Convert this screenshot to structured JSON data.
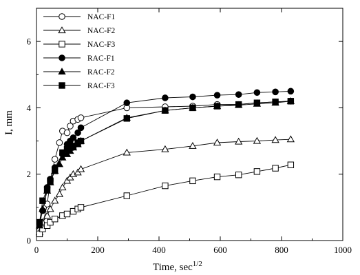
{
  "chart_data": {
    "type": "line",
    "title": "",
    "xlabel": "Time, sec",
    "xlabel_superscript": "1/2",
    "ylabel": "I, mm",
    "xlim": [
      0,
      1000
    ],
    "ylim": [
      0,
      7
    ],
    "x_ticks": [
      "0",
      "200",
      "400",
      "600",
      "800",
      "1000"
    ],
    "y_ticks": [
      "0",
      "2",
      "4",
      "6"
    ],
    "grid": false,
    "legend_position": "top-left",
    "series": [
      {
        "name": "NAC-F1",
        "marker": "circle-open",
        "x": [
          10,
          20,
          35,
          45,
          60,
          75,
          85,
          100,
          110,
          120,
          135,
          145,
          295,
          420,
          510,
          590,
          660,
          720,
          780,
          830
        ],
        "y": [
          0.3,
          0.45,
          1.1,
          1.8,
          2.45,
          2.95,
          3.3,
          3.25,
          3.45,
          3.6,
          3.65,
          3.7,
          4.0,
          4.03,
          4.05,
          4.1,
          4.1,
          4.15,
          4.18,
          4.2
        ]
      },
      {
        "name": "NAC-F2",
        "marker": "triangle-open",
        "x": [
          10,
          20,
          35,
          45,
          60,
          75,
          85,
          100,
          110,
          120,
          135,
          145,
          295,
          420,
          510,
          590,
          660,
          720,
          780,
          830
        ],
        "y": [
          0.25,
          0.55,
          0.75,
          0.95,
          1.2,
          1.4,
          1.6,
          1.8,
          1.9,
          2.0,
          2.05,
          2.15,
          2.65,
          2.75,
          2.85,
          2.95,
          2.98,
          3.0,
          3.03,
          3.05
        ]
      },
      {
        "name": "NAC-F3",
        "marker": "square-open",
        "x": [
          10,
          20,
          35,
          45,
          60,
          85,
          100,
          120,
          135,
          145,
          295,
          420,
          510,
          590,
          660,
          720,
          780,
          830
        ],
        "y": [
          0.2,
          0.35,
          0.45,
          0.55,
          0.65,
          0.75,
          0.8,
          0.88,
          0.95,
          1.0,
          1.35,
          1.65,
          1.8,
          1.92,
          1.98,
          2.08,
          2.18,
          2.28
        ]
      },
      {
        "name": "RAC-F1",
        "marker": "circle-filled",
        "x": [
          10,
          20,
          35,
          45,
          60,
          85,
          100,
          110,
          120,
          135,
          145,
          295,
          420,
          510,
          590,
          660,
          720,
          780,
          830
        ],
        "y": [
          0.5,
          0.9,
          1.6,
          1.85,
          2.2,
          2.6,
          2.9,
          3.0,
          3.1,
          3.25,
          3.4,
          4.15,
          4.3,
          4.33,
          4.38,
          4.4,
          4.46,
          4.48,
          4.5
        ]
      },
      {
        "name": "RAC-F2",
        "marker": "triangle-filled",
        "x": [
          10,
          20,
          35,
          45,
          60,
          75,
          85,
          100,
          110,
          120,
          135,
          145,
          295,
          420,
          510,
          590,
          660,
          720,
          780,
          830
        ],
        "y": [
          0.45,
          0.95,
          1.5,
          1.75,
          2.1,
          2.3,
          2.5,
          2.6,
          2.7,
          2.8,
          2.9,
          3.0,
          3.7,
          3.92,
          4.0,
          4.05,
          4.08,
          4.12,
          4.15,
          4.2
        ]
      },
      {
        "name": "RAC-F3",
        "marker": "square-filled",
        "x": [
          10,
          20,
          35,
          45,
          60,
          85,
          100,
          110,
          120,
          135,
          145,
          295,
          420,
          510,
          590,
          660,
          720,
          780,
          830
        ],
        "y": [
          0.55,
          1.2,
          1.55,
          1.8,
          2.1,
          2.65,
          2.75,
          2.8,
          2.85,
          2.95,
          3.0,
          3.68,
          3.92,
          4.0,
          4.05,
          4.1,
          4.15,
          4.18,
          4.2
        ]
      }
    ]
  }
}
